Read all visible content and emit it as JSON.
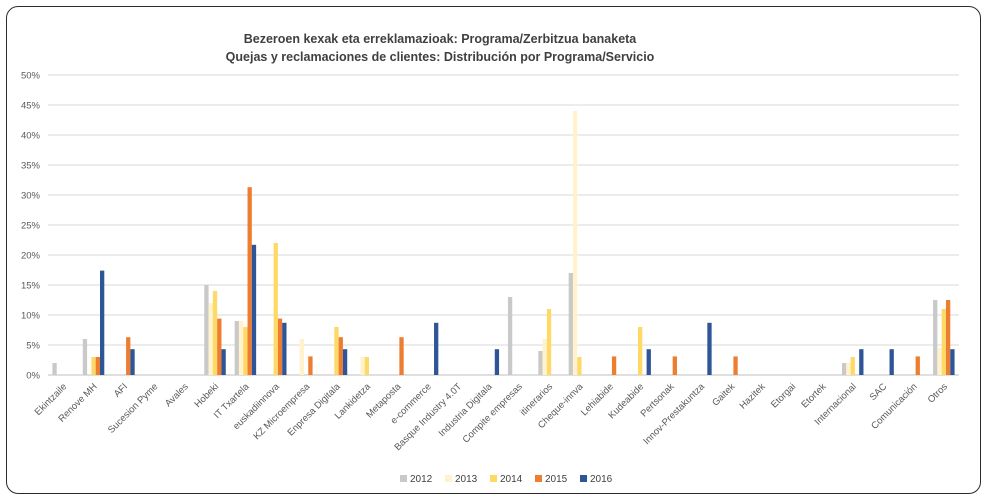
{
  "chart_data": {
    "type": "bar",
    "title": "Bezeroen kexak eta erreklamazioak: Programa/Zerbitzua banaketa",
    "subtitle": "Quejas y reclamaciones de clientes: Distribución por Programa/Servicio",
    "xlabel": "",
    "ylabel": "",
    "ylim": [
      0,
      50
    ],
    "y_ticks": [
      "0%",
      "5%",
      "10%",
      "15%",
      "20%",
      "25%",
      "30%",
      "35%",
      "40%",
      "45%",
      "50%"
    ],
    "grid": true,
    "legend_position": "bottom",
    "categories": [
      "Ekintzaile",
      "Renove MH",
      "AFI",
      "Sucesion Pyme",
      "Avales",
      "Hobeki",
      "IT Txartela",
      "euskadiinnova",
      "KZ Microempresa",
      "Enpresa Digitala",
      "Lankidetza",
      "Metaposta",
      "e-commerce",
      "Basque Industry 4.0T",
      "Industria Digitala",
      "Compite empresas",
      "itinerarios",
      "Cheque-innva",
      "Lehiabide",
      "Kudeabide",
      "Pertsonak",
      "Innov-Prestakuntza",
      "Gaitek",
      "Hazitek",
      "Etorgai",
      "Etortek",
      "Internacional",
      "SAC",
      "Comunicación",
      "Otros"
    ],
    "series": [
      {
        "name": "2012",
        "color": "#c9c9c9",
        "values": [
          2,
          6,
          0,
          0,
          0,
          15,
          9,
          0,
          0,
          0,
          0,
          0,
          0,
          0,
          0,
          13,
          4,
          17,
          0,
          0,
          0,
          0,
          0,
          0,
          0,
          0,
          2,
          0,
          0,
          12.5
        ]
      },
      {
        "name": "2013",
        "color": "#fff2cc",
        "values": [
          0,
          0,
          0,
          0,
          0,
          12,
          9,
          0,
          6,
          0,
          3,
          0,
          0,
          0,
          0,
          0,
          6,
          44,
          0,
          0,
          0,
          0,
          0,
          0,
          0,
          0,
          2,
          0,
          0,
          4.5
        ]
      },
      {
        "name": "2014",
        "color": "#ffd966",
        "values": [
          0,
          3,
          0,
          0,
          0,
          14,
          8,
          22,
          0,
          8,
          3,
          0,
          0,
          0,
          0,
          0,
          11,
          3,
          0,
          8,
          0,
          0,
          0,
          0,
          0,
          0,
          3,
          0,
          0,
          11
        ]
      },
      {
        "name": "2015",
        "color": "#ed7d31",
        "values": [
          0,
          3,
          6.3,
          0,
          0,
          9.4,
          31.3,
          9.4,
          3.1,
          6.3,
          0,
          6.3,
          0,
          0,
          0,
          0,
          0,
          0,
          3.1,
          0,
          3.1,
          0,
          3.1,
          0,
          0,
          0,
          0,
          0,
          3.1,
          12.5
        ]
      },
      {
        "name": "2016",
        "color": "#2e5597",
        "values": [
          0,
          17.4,
          4.3,
          0,
          0,
          4.3,
          21.7,
          8.7,
          0,
          4.3,
          0,
          0,
          8.7,
          0,
          4.3,
          0,
          0,
          0,
          0,
          4.3,
          0,
          8.7,
          0,
          0,
          0,
          0,
          4.3,
          4.3,
          0,
          4.3
        ]
      }
    ]
  }
}
